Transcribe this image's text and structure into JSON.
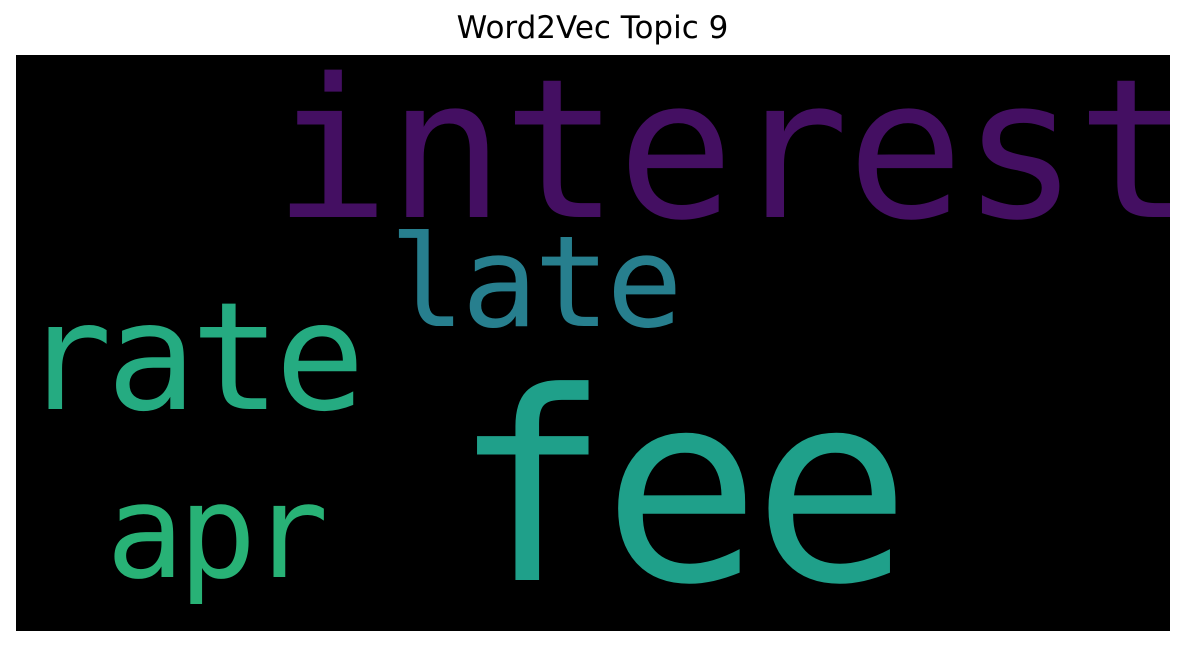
{
  "title": "Word2Vec Topic 9",
  "wordcloud": {
    "background": "#000000",
    "words": {
      "interest": {
        "text": "interest",
        "color": "#440f62"
      },
      "late": {
        "text": "late",
        "color": "#277f8e"
      },
      "rate": {
        "text": "rate",
        "color": "#25ab81"
      },
      "apr": {
        "text": "apr",
        "color": "#28b276"
      },
      "fee": {
        "text": "fee",
        "color": "#1fa08a"
      }
    }
  }
}
